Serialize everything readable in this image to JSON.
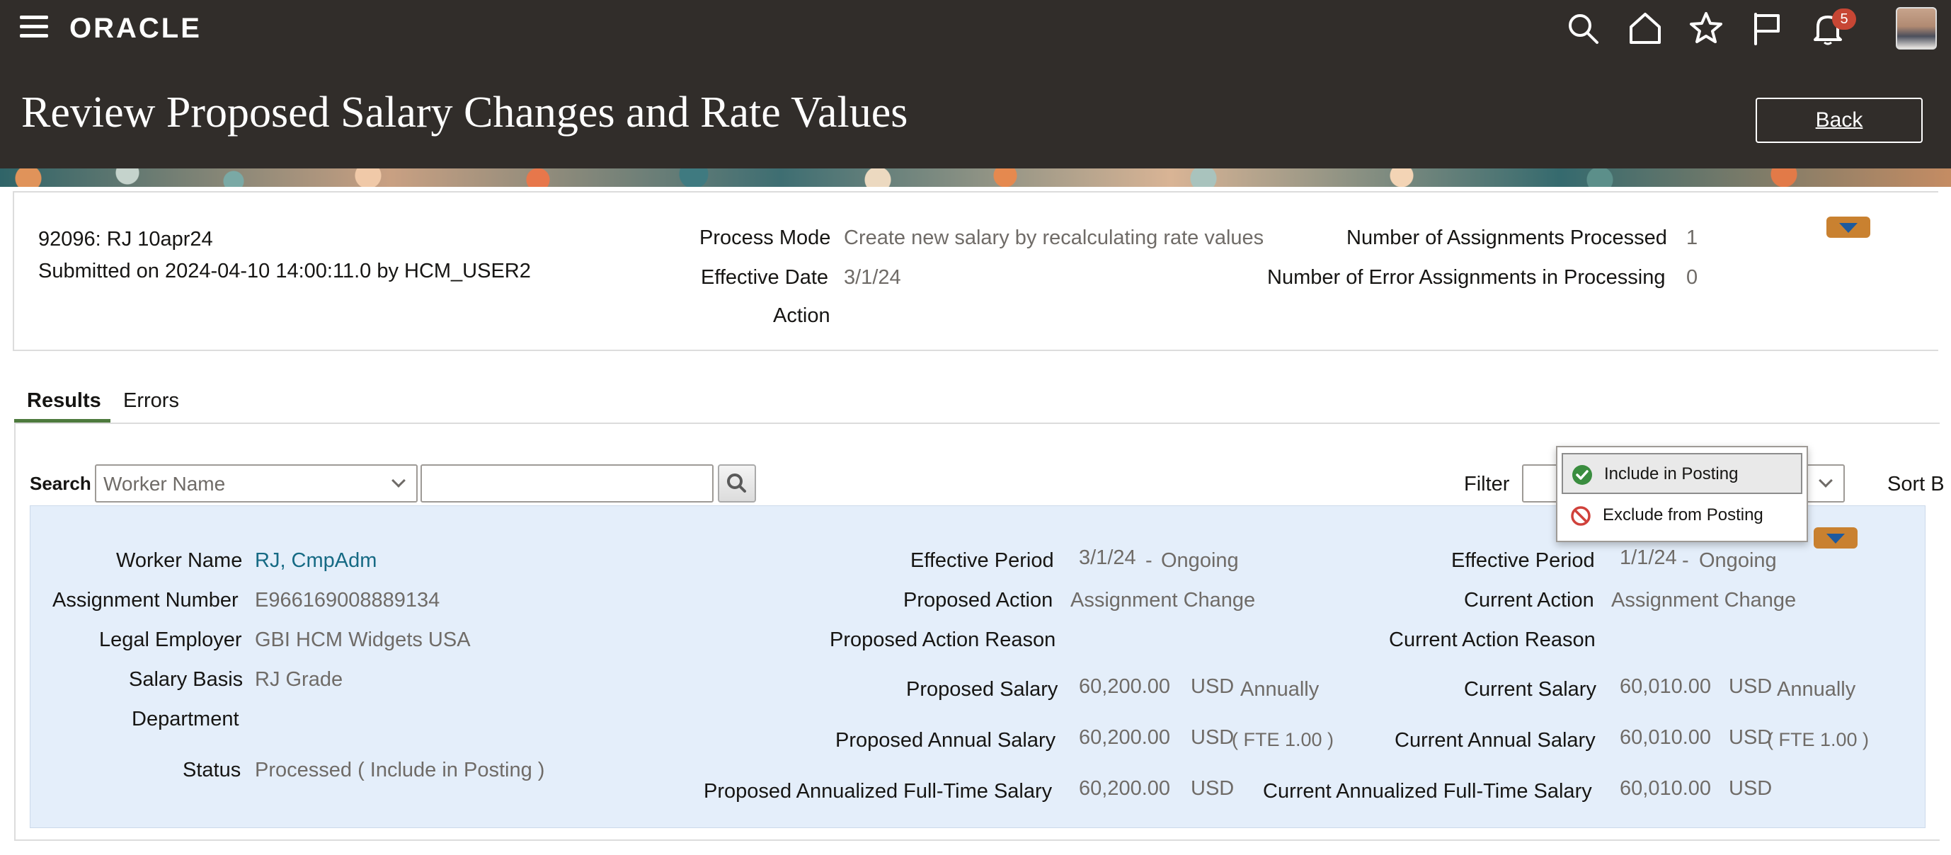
{
  "header": {
    "brand": "ORACLE",
    "notification_count": "5",
    "page_title": "Review Proposed Salary Changes and Rate Values",
    "back_label": "Back"
  },
  "summary": {
    "id_line": "92096: RJ 10apr24",
    "submitted_line": "Submitted on 2024-04-10 14:00:11.0 by HCM_USER2",
    "process_mode_label": "Process Mode",
    "process_mode_value": "Create new salary by recalculating rate values",
    "effective_date_label": "Effective Date",
    "effective_date_value": "3/1/24",
    "action_label": "Action",
    "assignments_processed_label": "Number of Assignments Processed",
    "assignments_processed_value": "1",
    "error_assignments_label": "Number of Error Assignments in Processing",
    "error_assignments_value": "0"
  },
  "tabs": [
    {
      "label": "Results",
      "active": true
    },
    {
      "label": "Errors",
      "active": false
    }
  ],
  "toolbar": {
    "search_label": "Search",
    "search_by_value": "Worker Name",
    "search_text": "",
    "filter_label": "Filter",
    "sort_label": "Sort B"
  },
  "filter_dropdown": {
    "options": [
      {
        "label": "Include in Posting",
        "icon": "check-circle-icon",
        "selected": true
      },
      {
        "label": "Exclude from Posting",
        "icon": "no-entry-icon",
        "selected": false
      }
    ]
  },
  "record": {
    "worker_name_label": "Worker Name",
    "worker_name_value": "RJ, CmpAdm",
    "assignment_number_label": "Assignment Number",
    "assignment_number_value": "E966169008889134",
    "legal_employer_label": "Legal Employer",
    "legal_employer_value": "GBI HCM Widgets USA",
    "salary_basis_label": "Salary Basis",
    "salary_basis_value": "RJ Grade",
    "department_label": "Department",
    "status_label": "Status",
    "status_value": "Processed ( Include in Posting )",
    "proposed": {
      "effective_period_label": "Effective Period",
      "effective_period_start": "3/1/24",
      "effective_period_sep": "-",
      "effective_period_end": "Ongoing",
      "action_label": "Proposed Action",
      "action_value": "Assignment Change",
      "action_reason_label": "Proposed Action Reason",
      "salary_label": "Proposed Salary",
      "salary_value": "60,200.00",
      "salary_currency": "USD",
      "salary_frequency": "Annually",
      "annual_salary_label": "Proposed Annual Salary",
      "annual_salary_value": "60,200.00",
      "annual_salary_currency": "USD",
      "annual_salary_fte": "( FTE 1.00 )",
      "annualized_ft_label": "Proposed Annualized Full-Time Salary",
      "annualized_ft_value": "60,200.00",
      "annualized_ft_currency": "USD"
    },
    "current": {
      "effective_period_label": "Effective Period",
      "effective_period_start": "1/1/24",
      "effective_period_sep": "-",
      "effective_period_end": "Ongoing",
      "action_label": "Current Action",
      "action_value": "Assignment Change",
      "action_reason_label": "Current Action Reason",
      "salary_label": "Current Salary",
      "salary_value": "60,010.00",
      "salary_currency": "USD",
      "salary_frequency": "Annually",
      "annual_salary_label": "Current Annual Salary",
      "annual_salary_value": "60,010.00",
      "annual_salary_currency": "USD",
      "annual_salary_fte": "( FTE 1.00 )",
      "annualized_ft_label": "Current Annualized Full-Time Salary",
      "annualized_ft_value": "60,010.00",
      "annualized_ft_currency": "USD"
    }
  },
  "colors": {
    "header_bg": "#312d2a",
    "accent_orange": "#c98130",
    "tab_underline": "#4d7a3d",
    "panel_bg": "#e4eefa",
    "link": "#166a84",
    "badge": "#c74634"
  }
}
